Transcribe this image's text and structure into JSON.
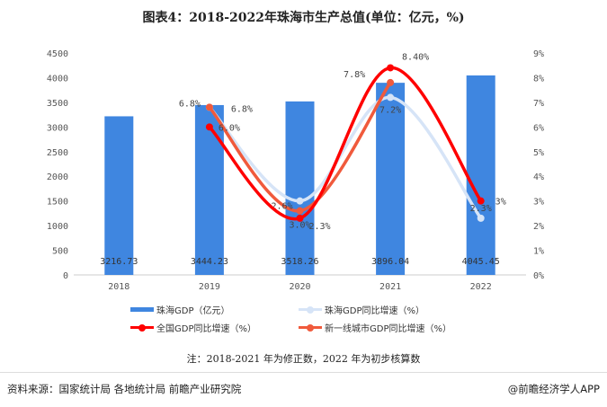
{
  "title": "图表4：2018-2022年珠海市生产总值(单位：亿元，%)",
  "chart_data": {
    "type": "bar+line",
    "title": "图表4：2018-2022年珠海市生产总值(单位：亿元，%)",
    "categories": [
      "2018",
      "2019",
      "2020",
      "2021",
      "2022"
    ],
    "y_left": {
      "range": [
        0,
        4500
      ],
      "ticks": [
        "0",
        "500",
        "1000",
        "1500",
        "2000",
        "2500",
        "3000",
        "3500",
        "4000",
        "4500"
      ]
    },
    "y_right": {
      "range": [
        0,
        9
      ],
      "ticks": [
        "0%",
        "1%",
        "2%",
        "3%",
        "4%",
        "5%",
        "6%",
        "7%",
        "8%",
        "9%"
      ]
    },
    "grid": false,
    "legend_position": "bottom",
    "series": [
      {
        "name": "珠海GDP（亿元）",
        "type": "bar",
        "axis": "left",
        "color": "#3f86e0",
        "values": [
          3216.73,
          3444.23,
          3518.26,
          3896.04,
          4045.45
        ],
        "labels": [
          "3216.73",
          "3444.23",
          "3518.26",
          "3896.04",
          "4045.45"
        ]
      },
      {
        "name": "珠海GDP同比增速（%）",
        "type": "line",
        "axis": "right",
        "color": "#d6e4f7",
        "values": [
          null,
          6.8,
          3.0,
          7.2,
          2.3
        ],
        "labels": [
          "",
          "6.8%",
          "3.0%",
          "7.2%",
          "2.3%"
        ]
      },
      {
        "name": "全国GDP同比增速（%）",
        "type": "line",
        "axis": "right",
        "color": "#ff0000",
        "values": [
          null,
          6.0,
          2.3,
          8.4,
          3
        ],
        "labels": [
          "",
          "6.0%",
          "2.3%",
          "8.40%",
          "3%"
        ]
      },
      {
        "name": "新一线城市GDP同比增速（%）",
        "type": "line",
        "axis": "right",
        "color": "#f05a3c",
        "values": [
          null,
          6.8,
          2.6,
          7.8,
          null
        ],
        "labels": [
          "",
          "6.8%",
          "2.6%",
          "7.8%",
          ""
        ]
      }
    ]
  },
  "note": "注：2018-2021 年为修正数，2022 年为初步核算数",
  "source": "资料来源：国家统计局 各地统计局 前瞻产业研究院",
  "brand": "@前瞻经济学人APP"
}
